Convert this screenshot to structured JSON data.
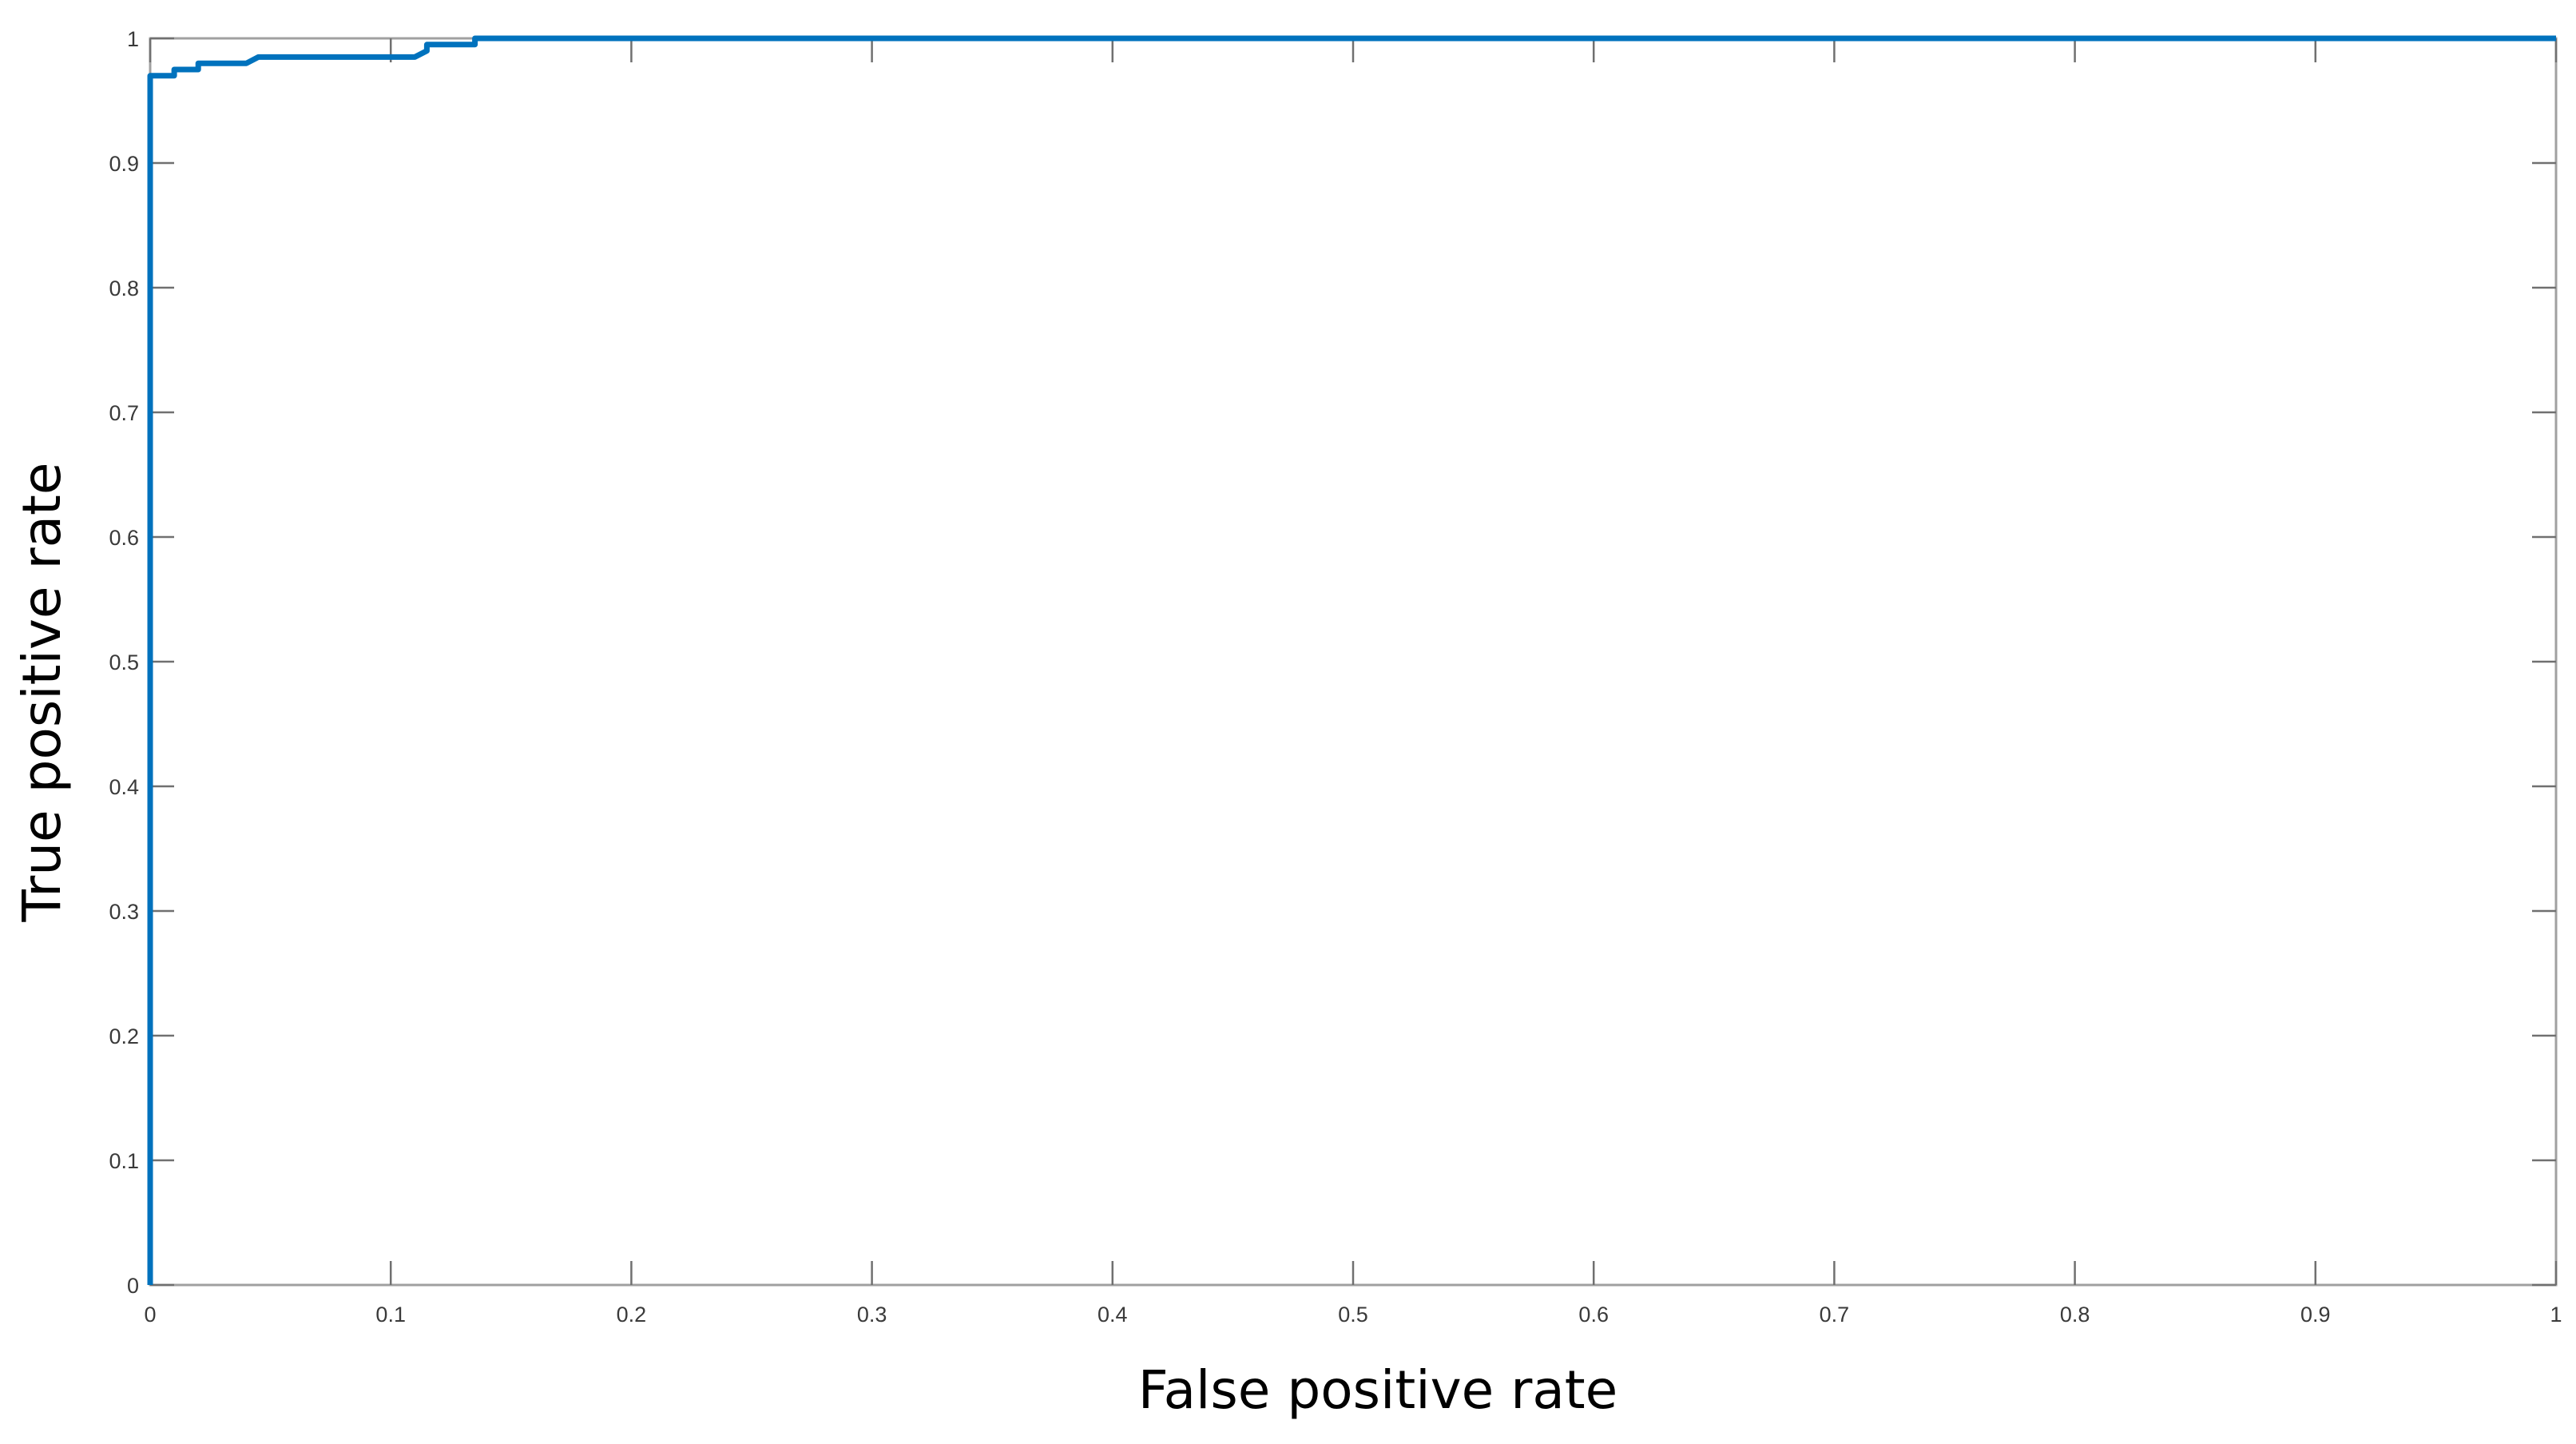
{
  "chart_data": {
    "type": "line",
    "title": "",
    "xlabel": "False positive rate",
    "ylabel": "True positive rate",
    "xlim": [
      0,
      1
    ],
    "ylim": [
      0,
      1
    ],
    "x_ticks": [
      "0",
      "0.1",
      "0.2",
      "0.3",
      "0.4",
      "0.5",
      "0.6",
      "0.7",
      "0.8",
      "0.9",
      "1"
    ],
    "y_ticks": [
      "0",
      "0.1",
      "0.2",
      "0.3",
      "0.4",
      "0.5",
      "0.6",
      "0.7",
      "0.8",
      "0.9",
      "1"
    ],
    "grid": false,
    "legend": "none",
    "series": [
      {
        "color": "#0072BD",
        "x": [
          0,
          0,
          0.01,
          0.01,
          0.02,
          0.02,
          0.04,
          0.045,
          0.11,
          0.115,
          0.115,
          0.135,
          0.135,
          1
        ],
        "y": [
          0,
          0.97,
          0.97,
          0.975,
          0.975,
          0.98,
          0.98,
          0.985,
          0.985,
          0.99,
          0.995,
          0.995,
          1,
          1
        ]
      }
    ]
  }
}
